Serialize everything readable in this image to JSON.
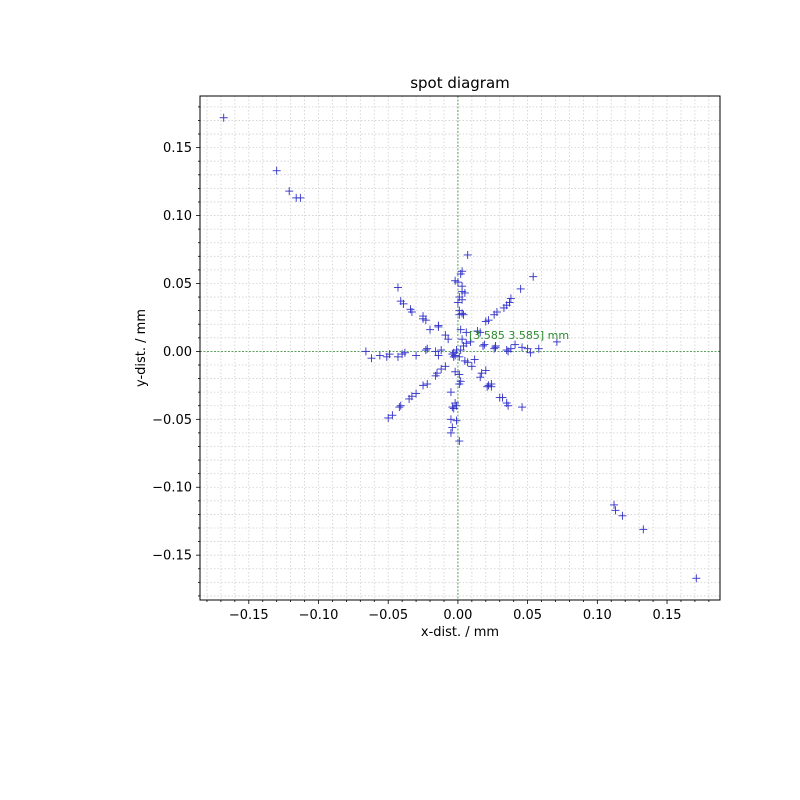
{
  "chart_data": {
    "type": "scatter",
    "title": "spot diagram",
    "xlabel": "x-dist. / mm",
    "ylabel": "y-dist. / mm",
    "xlim": [
      -0.185,
      0.188
    ],
    "ylim": [
      -0.183,
      0.188
    ],
    "xticks": [
      -0.15,
      -0.1,
      -0.05,
      0.0,
      0.05,
      0.1,
      0.15
    ],
    "xtick_labels": [
      "−0.15",
      "−0.10",
      "−0.05",
      "0.00",
      "0.05",
      "0.10",
      "0.15"
    ],
    "yticks": [
      -0.15,
      -0.1,
      -0.05,
      0.0,
      0.05,
      0.1,
      0.15
    ],
    "ytick_labels": [
      "−0.15",
      "−0.10",
      "−0.05",
      "0.00",
      "0.05",
      "0.10",
      "0.15"
    ],
    "grid": true,
    "marker": "+",
    "marker_color": "#3030c8",
    "crosshair_color": "#2e8b2e",
    "annotation": {
      "text": "[3.585 3.585] mm",
      "x": 0.008,
      "y": 0.009,
      "color": "#2e8b2e"
    },
    "points": [
      [
        -0.168,
        0.172
      ],
      [
        -0.13,
        0.133
      ],
      [
        -0.121,
        0.118
      ],
      [
        -0.116,
        0.113
      ],
      [
        -0.113,
        0.113
      ],
      [
        0.112,
        -0.113
      ],
      [
        0.113,
        -0.117
      ],
      [
        0.118,
        -0.121
      ],
      [
        0.133,
        -0.131
      ],
      [
        0.171,
        -0.167
      ],
      [
        0.003,
        0.059
      ],
      [
        0.002,
        0.057
      ],
      [
        0.007,
        0.071
      ],
      [
        0.0,
        0.051
      ],
      [
        -0.002,
        0.052
      ],
      [
        0.003,
        0.048
      ],
      [
        0.003,
        0.044
      ],
      [
        0.005,
        0.043
      ],
      [
        0.001,
        0.04
      ],
      [
        0.003,
        0.038
      ],
      [
        0.0,
        0.036
      ],
      [
        0.001,
        0.03
      ],
      [
        0.003,
        0.028
      ],
      [
        0.001,
        0.027
      ],
      [
        0.004,
        0.027
      ],
      [
        0.002,
        0.016
      ],
      [
        0.006,
        0.014
      ],
      [
        0.003,
        0.009
      ],
      [
        0.006,
        0.006
      ],
      [
        0.004,
        0.004
      ],
      [
        0.009,
        0.007
      ],
      [
        0.002,
        0.001
      ],
      [
        -0.001,
        0.001
      ],
      [
        -0.003,
        -0.001
      ],
      [
        -0.004,
        -0.002
      ],
      [
        -0.002,
        -0.003
      ],
      [
        0.001,
        -0.004
      ],
      [
        -0.003,
        -0.004
      ],
      [
        0.001,
        -0.066
      ],
      [
        -0.005,
        -0.06
      ],
      [
        -0.004,
        -0.056
      ],
      [
        -0.001,
        -0.051
      ],
      [
        -0.005,
        -0.05
      ],
      [
        -0.004,
        -0.041
      ],
      [
        -0.001,
        -0.04
      ],
      [
        -0.002,
        -0.038
      ],
      [
        -0.003,
        -0.042
      ],
      [
        -0.005,
        -0.03
      ],
      [
        0.001,
        -0.024
      ],
      [
        0.002,
        -0.022
      ],
      [
        0.001,
        -0.017
      ],
      [
        -0.002,
        -0.015
      ],
      [
        0.005,
        -0.007
      ],
      [
        0.007,
        -0.008
      ],
      [
        0.012,
        -0.006
      ],
      [
        -0.043,
        0.047
      ],
      [
        -0.041,
        0.037
      ],
      [
        -0.039,
        0.035
      ],
      [
        -0.034,
        0.031
      ],
      [
        -0.033,
        0.029
      ],
      [
        -0.025,
        0.026
      ],
      [
        -0.025,
        0.024
      ],
      [
        -0.023,
        0.023
      ],
      [
        -0.014,
        0.019
      ],
      [
        -0.014,
        0.018
      ],
      [
        -0.02,
        0.016
      ],
      [
        -0.009,
        0.012
      ],
      [
        -0.007,
        0.009
      ],
      [
        0.054,
        0.055
      ],
      [
        0.045,
        0.046
      ],
      [
        0.038,
        0.039
      ],
      [
        0.037,
        0.036
      ],
      [
        0.035,
        0.034
      ],
      [
        0.033,
        0.032
      ],
      [
        0.028,
        0.029
      ],
      [
        0.026,
        0.027
      ],
      [
        0.022,
        0.023
      ],
      [
        0.02,
        0.022
      ],
      [
        0.014,
        0.015
      ],
      [
        0.016,
        0.014
      ],
      [
        -0.05,
        -0.049
      ],
      [
        -0.047,
        -0.047
      ],
      [
        -0.042,
        -0.041
      ],
      [
        -0.041,
        -0.04
      ],
      [
        -0.035,
        -0.035
      ],
      [
        -0.033,
        -0.033
      ],
      [
        -0.03,
        -0.031
      ],
      [
        -0.025,
        -0.025
      ],
      [
        -0.022,
        -0.024
      ],
      [
        -0.016,
        -0.018
      ],
      [
        -0.015,
        -0.016
      ],
      [
        -0.012,
        -0.013
      ],
      [
        -0.009,
        -0.011
      ],
      [
        0.046,
        -0.041
      ],
      [
        0.036,
        -0.04
      ],
      [
        0.035,
        -0.038
      ],
      [
        0.032,
        -0.034
      ],
      [
        0.03,
        -0.034
      ],
      [
        0.024,
        -0.026
      ],
      [
        0.022,
        -0.025
      ],
      [
        0.024,
        -0.024
      ],
      [
        0.021,
        -0.026
      ],
      [
        0.016,
        -0.019
      ],
      [
        0.017,
        -0.016
      ],
      [
        0.02,
        -0.014
      ],
      [
        0.01,
        -0.011
      ],
      [
        -0.066,
        0.0
      ],
      [
        -0.062,
        -0.005
      ],
      [
        -0.056,
        -0.003
      ],
      [
        -0.051,
        -0.004
      ],
      [
        -0.049,
        -0.002
      ],
      [
        -0.043,
        -0.004
      ],
      [
        -0.04,
        -0.002
      ],
      [
        -0.038,
        -0.001
      ],
      [
        -0.03,
        -0.003
      ],
      [
        -0.022,
        0.002
      ],
      [
        -0.023,
        0.001
      ],
      [
        -0.014,
        -0.003
      ],
      [
        -0.012,
        0.001
      ],
      [
        -0.016,
        0.0
      ],
      [
        0.071,
        0.007
      ],
      [
        0.058,
        0.002
      ],
      [
        0.05,
        0.002
      ],
      [
        0.052,
        -0.001
      ],
      [
        0.046,
        0.003
      ],
      [
        0.041,
        0.005
      ],
      [
        0.038,
        0.002
      ],
      [
        0.035,
        0.001
      ],
      [
        0.036,
        0.0
      ],
      [
        0.027,
        0.004
      ],
      [
        0.026,
        0.002
      ],
      [
        0.027,
        0.003
      ],
      [
        0.018,
        0.004
      ],
      [
        0.019,
        0.005
      ]
    ]
  }
}
